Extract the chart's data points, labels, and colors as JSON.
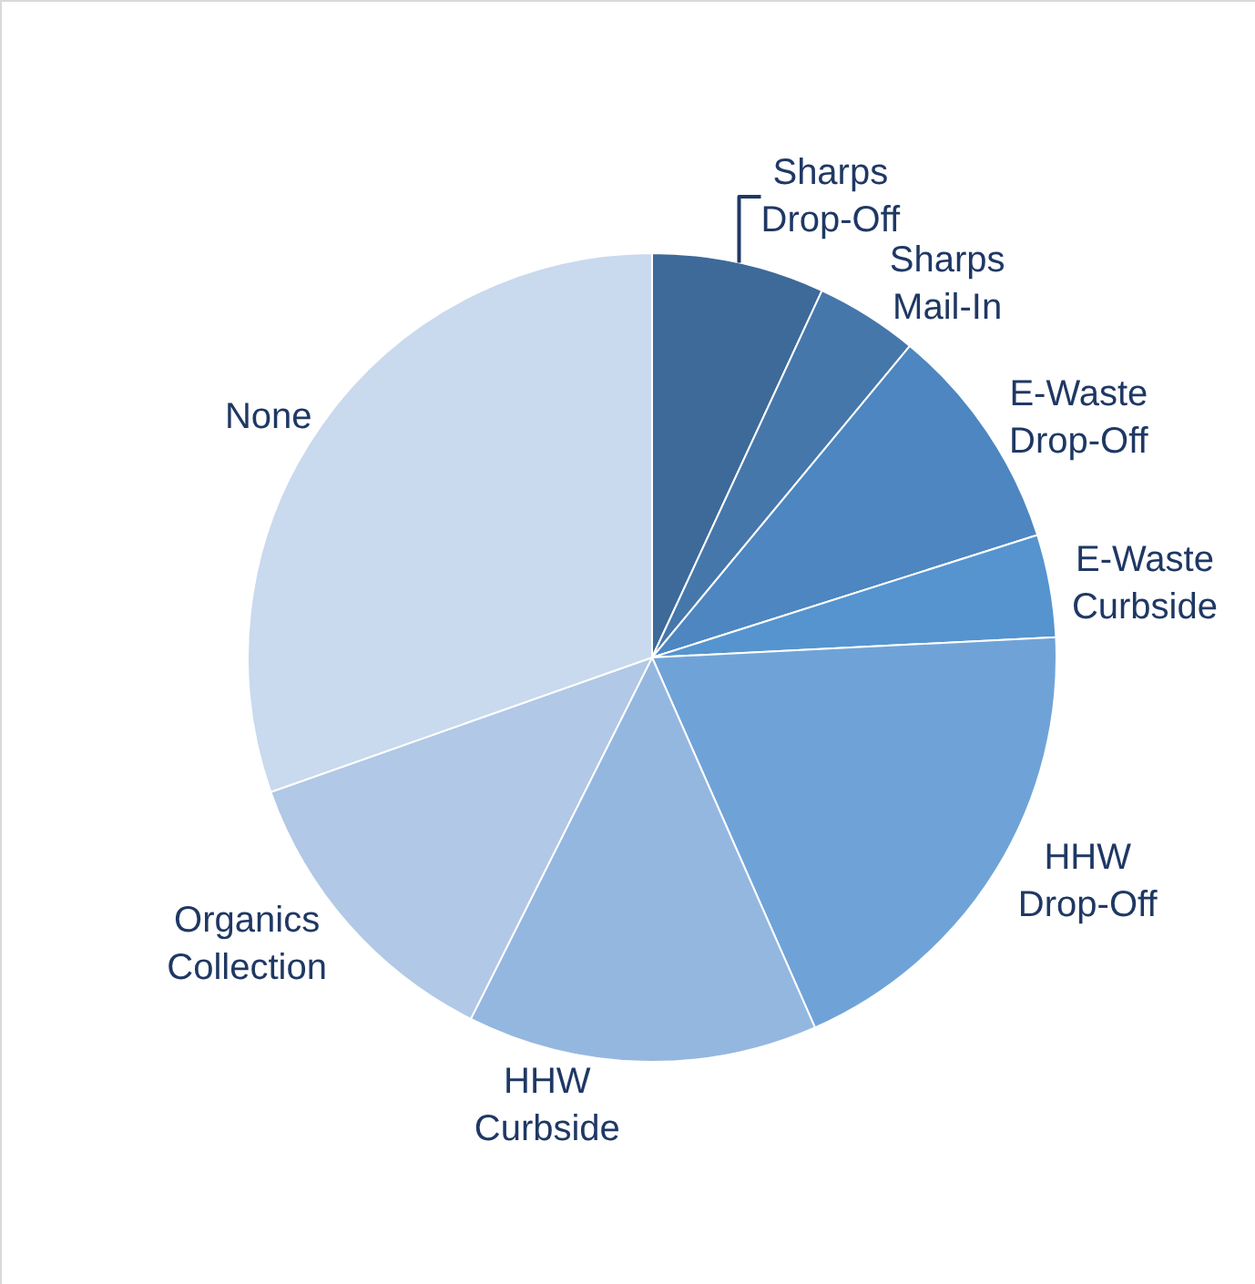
{
  "chart_data": {
    "type": "pie",
    "categories": [
      "Sharps Drop-Off",
      "Sharps Mail-In",
      "E-Waste Drop-Off",
      "E-Waste Curbside",
      "HHW Drop-Off",
      "HHW Curbside",
      "Organics Collection",
      "None"
    ],
    "values": [
      6.9,
      4.1,
      9.1,
      4.1,
      19.2,
      14.0,
      12.2,
      30.4
    ],
    "colors": [
      "#3d6a99",
      "#4677ab",
      "#4d86c0",
      "#5594cf",
      "#6fa3d8",
      "#94b7e0",
      "#b1c8e6",
      "#c9d9ee"
    ],
    "legend": false
  }
}
